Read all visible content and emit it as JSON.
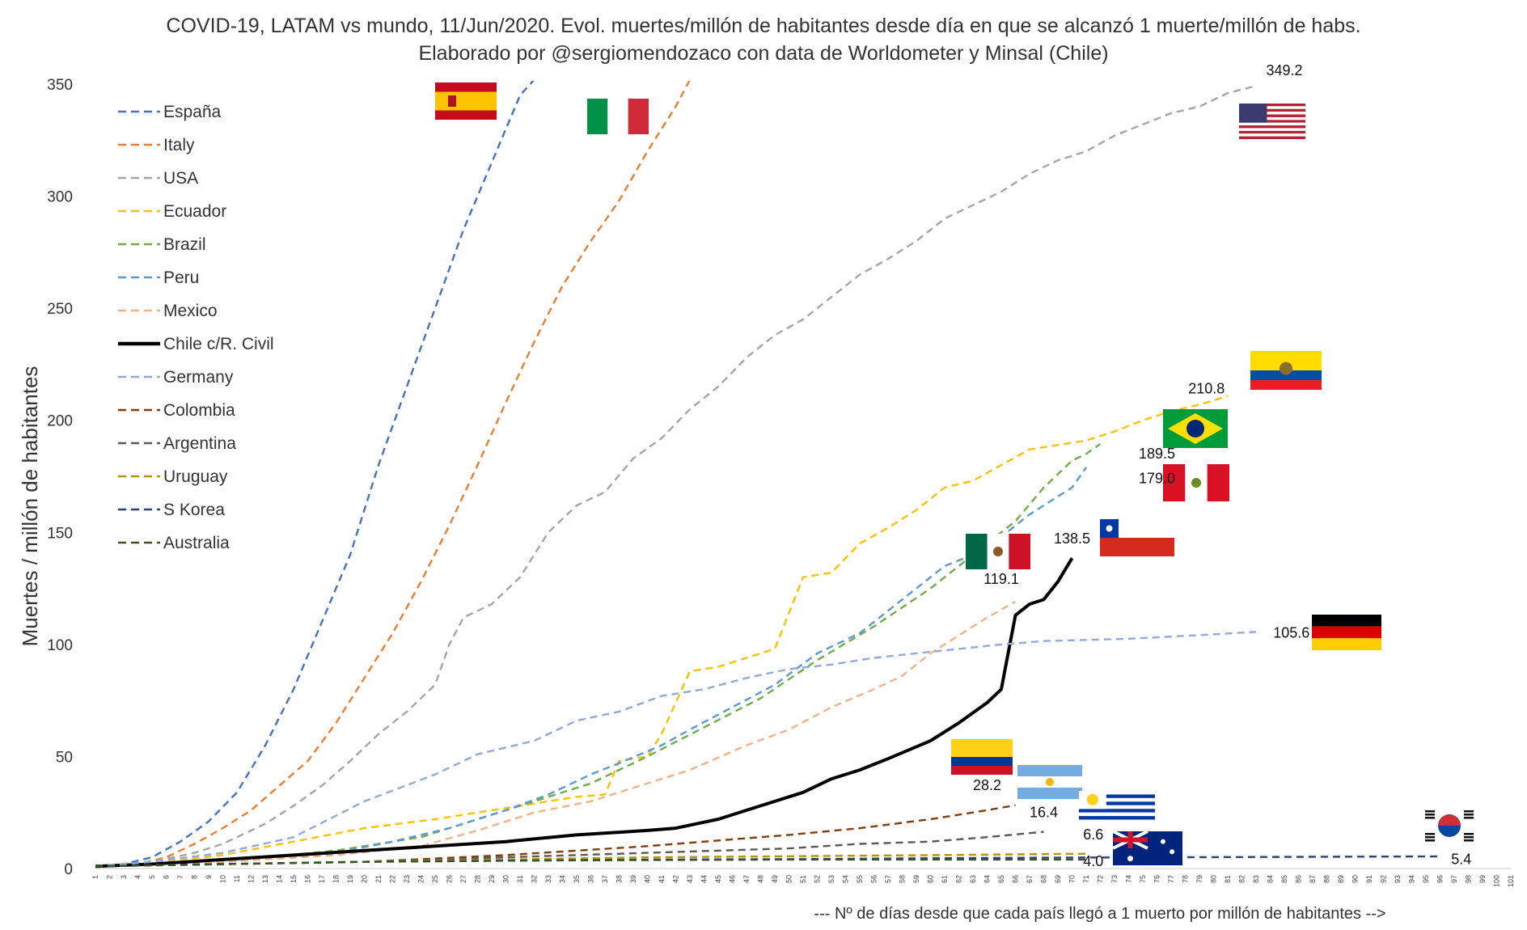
{
  "chart_data": {
    "type": "line",
    "title_line1": "COVID-19, LATAM vs mundo, 11/Jun/2020. Evol. muertes/millón de habitantes desde día en que se alcanzó 1 muerte/millón de habs.",
    "title_line2": "Elaborado por @sergiomendozaco con data de Worldometer y Minsal (Chile)",
    "ylabel": "Muertes / millón de habitantes",
    "xlabel": "--- Nº de días desde que cada país llegó a 1 muerto por millón de habitantes -->",
    "ylim": [
      0,
      350
    ],
    "yticks": [
      0,
      50,
      100,
      150,
      200,
      250,
      300,
      350
    ],
    "x_range": [
      1,
      101
    ],
    "series": [
      {
        "name": "España",
        "color": "#4472c4",
        "dash": true,
        "points": [
          [
            1,
            1
          ],
          [
            3,
            2
          ],
          [
            5,
            5
          ],
          [
            7,
            12
          ],
          [
            9,
            21
          ],
          [
            11,
            34
          ],
          [
            13,
            55
          ],
          [
            15,
            80
          ],
          [
            17,
            110
          ],
          [
            19,
            140
          ],
          [
            21,
            180
          ],
          [
            23,
            215
          ],
          [
            25,
            250
          ],
          [
            27,
            285
          ],
          [
            29,
            315
          ],
          [
            31,
            345
          ],
          [
            32,
            352
          ]
        ]
      },
      {
        "name": "Italy",
        "color": "#ed7d31",
        "dash": true,
        "points": [
          [
            1,
            1
          ],
          [
            4,
            2
          ],
          [
            6,
            5
          ],
          [
            8,
            11
          ],
          [
            10,
            18
          ],
          [
            12,
            26
          ],
          [
            14,
            37
          ],
          [
            16,
            48
          ],
          [
            18,
            65
          ],
          [
            20,
            85
          ],
          [
            22,
            105
          ],
          [
            24,
            128
          ],
          [
            26,
            153
          ],
          [
            28,
            180
          ],
          [
            30,
            208
          ],
          [
            32,
            235
          ],
          [
            34,
            260
          ],
          [
            36,
            280
          ],
          [
            38,
            298
          ],
          [
            40,
            320
          ],
          [
            42,
            340
          ],
          [
            43,
            352
          ]
        ]
      },
      {
        "name": "USA",
        "color": "#a5a5a5",
        "dash": true,
        "points": [
          [
            1,
            1
          ],
          [
            5,
            3
          ],
          [
            8,
            7
          ],
          [
            10,
            11
          ],
          [
            13,
            20
          ],
          [
            15,
            28
          ],
          [
            17,
            37
          ],
          [
            19,
            48
          ],
          [
            21,
            60
          ],
          [
            23,
            70
          ],
          [
            25,
            82
          ],
          [
            26,
            100
          ],
          [
            27,
            112
          ],
          [
            29,
            118
          ],
          [
            31,
            130
          ],
          [
            33,
            150
          ],
          [
            35,
            162
          ],
          [
            37,
            168
          ],
          [
            39,
            183
          ],
          [
            41,
            192
          ],
          [
            43,
            205
          ],
          [
            45,
            215
          ],
          [
            47,
            228
          ],
          [
            49,
            238
          ],
          [
            51,
            245
          ],
          [
            53,
            255
          ],
          [
            55,
            265
          ],
          [
            57,
            272
          ],
          [
            59,
            280
          ],
          [
            61,
            290
          ],
          [
            63,
            296
          ],
          [
            65,
            302
          ],
          [
            67,
            310
          ],
          [
            69,
            316
          ],
          [
            71,
            320
          ],
          [
            73,
            327
          ],
          [
            75,
            332
          ],
          [
            77,
            337
          ],
          [
            79,
            340
          ],
          [
            81,
            346
          ],
          [
            83,
            349.2
          ]
        ]
      },
      {
        "name": "Ecuador",
        "color": "#ffc000",
        "dash": true,
        "points": [
          [
            1,
            1
          ],
          [
            6,
            3
          ],
          [
            10,
            6
          ],
          [
            15,
            12
          ],
          [
            20,
            18
          ],
          [
            25,
            22
          ],
          [
            30,
            27
          ],
          [
            35,
            32
          ],
          [
            37,
            33
          ],
          [
            38,
            48
          ],
          [
            40,
            50
          ],
          [
            41,
            60
          ],
          [
            43,
            88
          ],
          [
            45,
            90
          ],
          [
            47,
            94
          ],
          [
            49,
            98
          ],
          [
            51,
            130
          ],
          [
            53,
            132
          ],
          [
            55,
            145
          ],
          [
            57,
            152
          ],
          [
            59,
            160
          ],
          [
            61,
            170
          ],
          [
            63,
            173
          ],
          [
            65,
            180
          ],
          [
            67,
            187
          ],
          [
            69,
            189
          ],
          [
            71,
            191
          ],
          [
            73,
            195
          ],
          [
            75,
            200
          ],
          [
            77,
            204
          ],
          [
            79,
            207
          ],
          [
            81,
            210.8
          ]
        ]
      },
      {
        "name": "Brazil",
        "color": "#70ad47",
        "dash": true,
        "points": [
          [
            1,
            1
          ],
          [
            10,
            3
          ],
          [
            18,
            8
          ],
          [
            24,
            14
          ],
          [
            28,
            22
          ],
          [
            32,
            30
          ],
          [
            36,
            38
          ],
          [
            40,
            50
          ],
          [
            44,
            63
          ],
          [
            48,
            76
          ],
          [
            52,
            93
          ],
          [
            56,
            108
          ],
          [
            60,
            125
          ],
          [
            62,
            135
          ],
          [
            64,
            145
          ],
          [
            66,
            155
          ],
          [
            68,
            170
          ],
          [
            70,
            182
          ],
          [
            71,
            185
          ],
          [
            72,
            189.5
          ]
        ]
      },
      {
        "name": "Peru",
        "color": "#5b9bd5",
        "dash": true,
        "points": [
          [
            1,
            1
          ],
          [
            10,
            3
          ],
          [
            18,
            7
          ],
          [
            22,
            12
          ],
          [
            26,
            18
          ],
          [
            30,
            26
          ],
          [
            33,
            33
          ],
          [
            36,
            42
          ],
          [
            38,
            47
          ],
          [
            41,
            55
          ],
          [
            43,
            62
          ],
          [
            46,
            72
          ],
          [
            49,
            82
          ],
          [
            52,
            96
          ],
          [
            55,
            105
          ],
          [
            58,
            120
          ],
          [
            61,
            135
          ],
          [
            63,
            140
          ],
          [
            65,
            148
          ],
          [
            67,
            158
          ],
          [
            69,
            166
          ],
          [
            70,
            170
          ],
          [
            71,
            179
          ]
        ]
      },
      {
        "name": "Mexico",
        "color": "#f4b183",
        "dash": true,
        "points": [
          [
            1,
            1
          ],
          [
            10,
            3
          ],
          [
            18,
            6
          ],
          [
            24,
            10
          ],
          [
            28,
            17
          ],
          [
            32,
            25
          ],
          [
            36,
            30
          ],
          [
            40,
            38
          ],
          [
            43,
            44
          ],
          [
            47,
            55
          ],
          [
            50,
            62
          ],
          [
            53,
            72
          ],
          [
            56,
            80
          ],
          [
            58,
            86
          ],
          [
            60,
            96
          ],
          [
            62,
            104
          ],
          [
            64,
            112
          ],
          [
            66,
            119.1
          ]
        ]
      },
      {
        "name": "Chile c/R. Civil",
        "color": "#000000",
        "dash": false,
        "points": [
          [
            1,
            1
          ],
          [
            5,
            2
          ],
          [
            10,
            4
          ],
          [
            15,
            6
          ],
          [
            20,
            8
          ],
          [
            25,
            10
          ],
          [
            30,
            12
          ],
          [
            35,
            15
          ],
          [
            40,
            17
          ],
          [
            42,
            18
          ],
          [
            45,
            22
          ],
          [
            48,
            28
          ],
          [
            51,
            34
          ],
          [
            53,
            40
          ],
          [
            55,
            44
          ],
          [
            57,
            49
          ],
          [
            60,
            57
          ],
          [
            62,
            65
          ],
          [
            64,
            74
          ],
          [
            65,
            80
          ],
          [
            66,
            113
          ],
          [
            67,
            118
          ],
          [
            68,
            120
          ],
          [
            69,
            128
          ],
          [
            70,
            138.5
          ]
        ]
      },
      {
        "name": "Germany",
        "color": "#8faadc",
        "dash": true,
        "points": [
          [
            1,
            1
          ],
          [
            5,
            3
          ],
          [
            10,
            7
          ],
          [
            15,
            14
          ],
          [
            20,
            30
          ],
          [
            25,
            42
          ],
          [
            28,
            51
          ],
          [
            32,
            57
          ],
          [
            35,
            66
          ],
          [
            38,
            70
          ],
          [
            41,
            77
          ],
          [
            44,
            80
          ],
          [
            47,
            85
          ],
          [
            50,
            89
          ],
          [
            53,
            91
          ],
          [
            56,
            94
          ],
          [
            59,
            96
          ],
          [
            62,
            98
          ],
          [
            65,
            100
          ],
          [
            68,
            101.5
          ],
          [
            71,
            102
          ],
          [
            74,
            102.5
          ],
          [
            77,
            103.5
          ],
          [
            80,
            104.5
          ],
          [
            83,
            105.6
          ]
        ]
      },
      {
        "name": "Colombia",
        "color": "#843c0c",
        "dash": true,
        "points": [
          [
            1,
            1
          ],
          [
            10,
            2
          ],
          [
            20,
            3
          ],
          [
            30,
            6
          ],
          [
            40,
            10
          ],
          [
            50,
            15
          ],
          [
            55,
            18
          ],
          [
            60,
            22
          ],
          [
            63,
            25
          ],
          [
            66,
            28.2
          ]
        ]
      },
      {
        "name": "Argentina",
        "color": "#595959",
        "dash": true,
        "points": [
          [
            1,
            1
          ],
          [
            10,
            2
          ],
          [
            20,
            3
          ],
          [
            30,
            5
          ],
          [
            40,
            7
          ],
          [
            50,
            9
          ],
          [
            55,
            11
          ],
          [
            60,
            12
          ],
          [
            64,
            14
          ],
          [
            68,
            16.4
          ]
        ]
      },
      {
        "name": "Uruguay",
        "color": "#bf9000",
        "dash": true,
        "points": [
          [
            1,
            1
          ],
          [
            10,
            2
          ],
          [
            20,
            3
          ],
          [
            30,
            4
          ],
          [
            40,
            5
          ],
          [
            50,
            5.5
          ],
          [
            60,
            6
          ],
          [
            71,
            6.6
          ]
        ]
      },
      {
        "name": "S Korea",
        "color": "#264478",
        "dash": true,
        "points": [
          [
            1,
            1
          ],
          [
            10,
            2
          ],
          [
            20,
            3
          ],
          [
            30,
            3.5
          ],
          [
            40,
            4
          ],
          [
            50,
            4.2
          ],
          [
            60,
            4.6
          ],
          [
            70,
            4.9
          ],
          [
            80,
            5.1
          ],
          [
            90,
            5.3
          ],
          [
            96,
            5.4
          ]
        ]
      },
      {
        "name": "Australia",
        "color": "#375623",
        "dash": true,
        "points": [
          [
            1,
            1
          ],
          [
            10,
            2
          ],
          [
            20,
            3
          ],
          [
            30,
            3.5
          ],
          [
            40,
            3.8
          ],
          [
            50,
            4
          ],
          [
            60,
            4
          ],
          [
            71,
            4.0
          ]
        ]
      }
    ],
    "data_labels": [
      {
        "text": "349.2",
        "x": 85,
        "y": 354
      },
      {
        "text": "210.8",
        "x": 79.5,
        "y": 212
      },
      {
        "text": "189.5",
        "x": 76,
        "y": 183
      },
      {
        "text": "179.0",
        "x": 76,
        "y": 172
      },
      {
        "text": "138.5",
        "x": 70,
        "y": 145
      },
      {
        "text": "119.1",
        "x": 65,
        "y": 127
      },
      {
        "text": "105.6",
        "x": 85.5,
        "y": 103
      },
      {
        "text": "28.2",
        "x": 64,
        "y": 35
      },
      {
        "text": "16.4",
        "x": 68,
        "y": 23
      },
      {
        "text": "6.6",
        "x": 71.5,
        "y": 13
      },
      {
        "text": "4.0",
        "x": 71.5,
        "y": 1
      },
      {
        "text": "5.4",
        "x": 97.5,
        "y": 2
      }
    ],
    "flags": [
      "españa-flag",
      "italy-flag",
      "usa-flag",
      "ecuador-flag",
      "brazil-flag",
      "peru-flag",
      "chile-flag",
      "mexico-flag",
      "germany-flag",
      "colombia-flag",
      "argentina-flag",
      "uruguay-flag",
      "australia-flag",
      "s-korea-flag"
    ]
  }
}
